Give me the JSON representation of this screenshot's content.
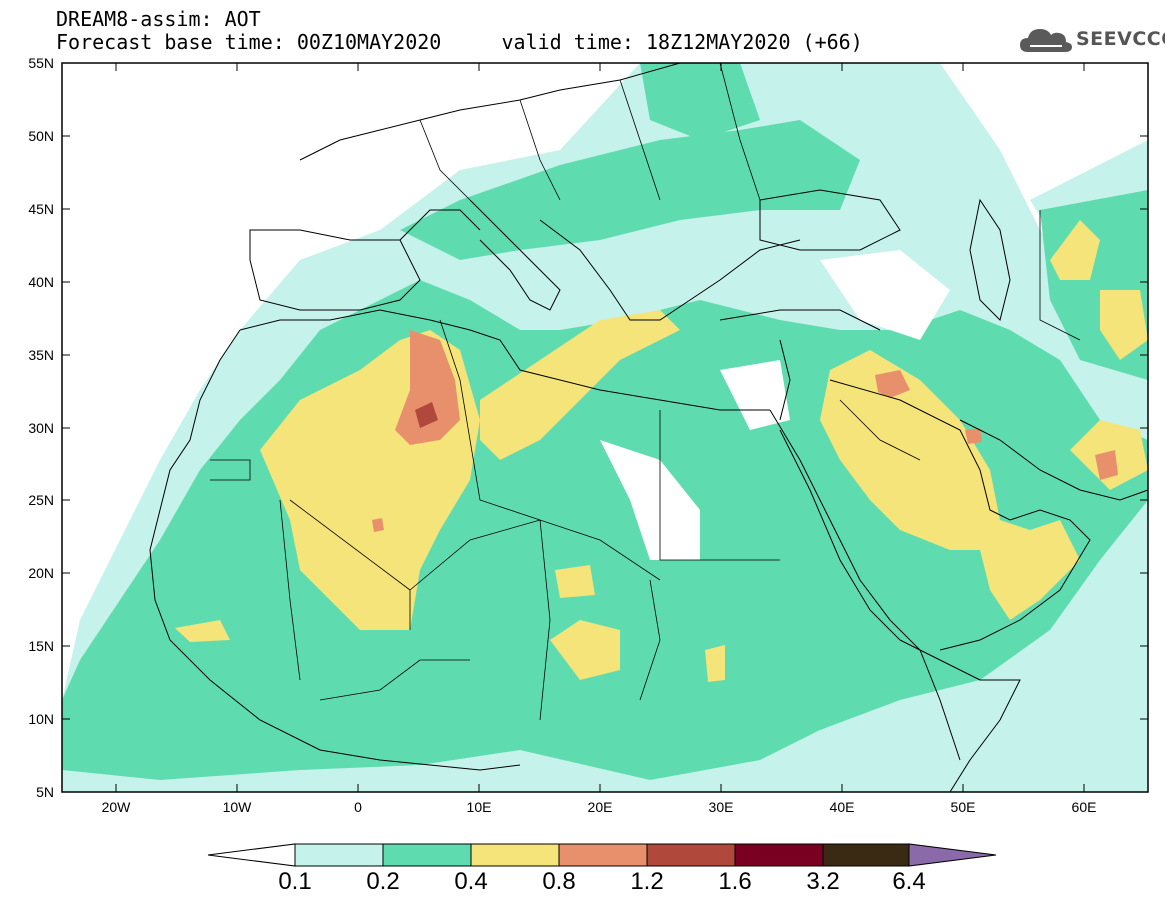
{
  "header": {
    "line1": "DREAM8-assim: AOT",
    "line2": "Forecast base time: 00Z10MAY2020     valid time: 18Z12MAY2020 (+66)"
  },
  "logo": {
    "text": "SEEVCCC",
    "icon": "cloud-icon"
  },
  "map": {
    "lat_labels": [
      "55N",
      "50N",
      "45N",
      "40N",
      "35N",
      "30N",
      "25N",
      "20N",
      "15N",
      "10N",
      "5N"
    ],
    "lon_labels": [
      "20W",
      "10W",
      "0",
      "10E",
      "20E",
      "30E",
      "40E",
      "50E",
      "60E"
    ],
    "lon_range": [
      -25,
      65
    ],
    "lat_range": [
      5,
      55
    ]
  },
  "colorbar": {
    "levels": [
      "0.1",
      "0.2",
      "0.4",
      "0.8",
      "1.2",
      "1.6",
      "3.2",
      "6.4"
    ],
    "colors": [
      "#c5f2ea",
      "#5fdbb0",
      "#f4e47a",
      "#e8906c",
      "#b0483c",
      "#7a0022",
      "#3a2a14",
      "#8a6aa8"
    ]
  }
}
